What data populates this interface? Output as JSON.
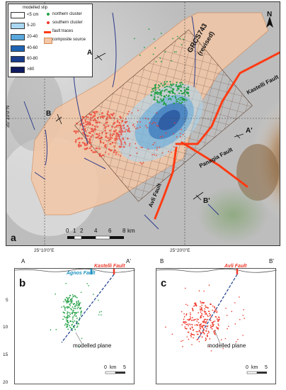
{
  "map": {
    "panel_letter": "a",
    "legend": {
      "title": "modelled slip",
      "bins": [
        {
          "label": "<5 cm",
          "color": "#ffffff"
        },
        {
          "label": "5-20",
          "color": "#a9d7f2"
        },
        {
          "label": "20-40",
          "color": "#5aa8dd"
        },
        {
          "label": "40-60",
          "color": "#1f63b4"
        },
        {
          "label": "60-80",
          "color": "#1a3d8e"
        },
        {
          "label": ">80",
          "color": "#101a5e"
        }
      ],
      "northern_cluster": "northern cluster",
      "southern_cluster": "southern cluster",
      "fault_traces": "fault traces",
      "composite_source": "composite source"
    },
    "source_label_1": "GRCS743",
    "source_label_2": "(revised)",
    "faults": {
      "kastelli": "Kastelli Fault",
      "panagia": "Panagia Fault",
      "avli": "Avli Fault"
    },
    "profile_points": {
      "a": "A",
      "a_prime": "A'",
      "b": "B",
      "b_prime": "B'"
    },
    "lat_label": "35°10'0\"N",
    "lon_left": "25°10'0\"E",
    "lon_right": "25°20'0\"E",
    "north": "N",
    "scale": {
      "ticks": [
        "0",
        "1",
        "2",
        "4",
        "6",
        "8"
      ],
      "unit": "km"
    },
    "colors": {
      "northern": "#22a045",
      "southern": "#ef3a2c",
      "fault": "#ff3b14",
      "source": "#f4c7a6"
    }
  },
  "panel_b": {
    "letter": "b",
    "left_end": "A",
    "right_end": "A'",
    "fault_1": "Agnos Fault",
    "fault_2": "Kastelli Fault",
    "plane_label": "modelled plane",
    "y_ticks": [
      "5",
      "10",
      "15",
      "20"
    ],
    "scale_labels": [
      "0",
      "km",
      "5"
    ]
  },
  "panel_c": {
    "letter": "c",
    "left_end": "B",
    "right_end": "B'",
    "fault_1": "Avli Fault",
    "plane_label": "modelled plane",
    "scale_labels": [
      "0",
      "km",
      "5"
    ]
  }
}
